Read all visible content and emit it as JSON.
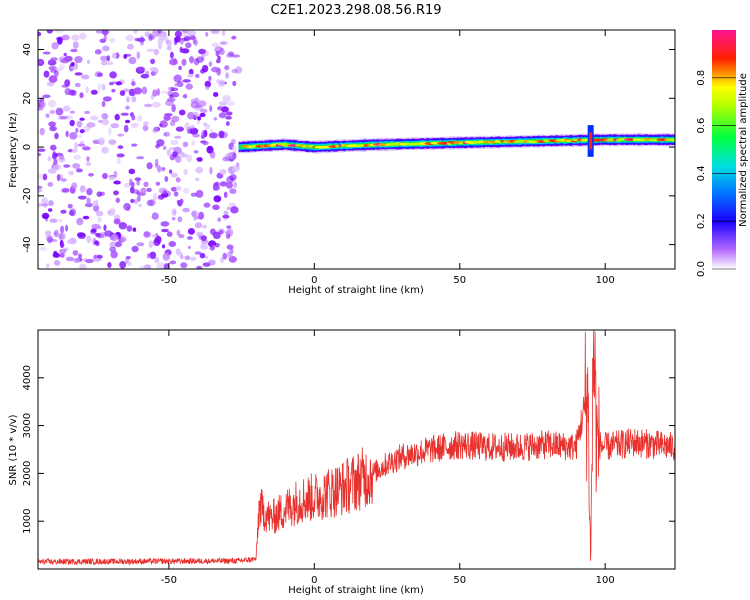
{
  "figure_title": "C2E1.2023.298.08.56.R19",
  "chart_data": [
    {
      "type": "heatmap",
      "title": "C2E1.2023.298.08.56.R19",
      "xlabel": "Height of straight line (km)",
      "ylabel": "Frequency (Hz)",
      "xlim": [
        -95,
        124
      ],
      "ylim": [
        -50,
        48
      ],
      "x_ticks": [
        -50,
        0,
        50,
        100
      ],
      "y_ticks": [
        -40,
        -20,
        0,
        20,
        40
      ],
      "x_tick_labels": [
        "-50",
        "0",
        "50",
        "100"
      ],
      "y_tick_labels": [
        "-40",
        "-20",
        "0",
        "20",
        "40"
      ],
      "colorbar": {
        "label": "Normalized spectral amplitude",
        "range": [
          0,
          1
        ],
        "ticks": [
          0.0,
          0.2,
          0.4,
          0.6,
          0.8
        ],
        "tick_labels": [
          "0.0",
          "0.2",
          "0.4",
          "0.6",
          "0.8"
        ],
        "colormap": "rainbow (white-violet-blue-cyan-green-yellow-red-magenta)"
      },
      "features": {
        "noise_region_x": [
          -95,
          -26
        ],
        "signal_start_x": -26,
        "signal_band_center_hz": [
          [
            -26,
            0
          ],
          [
            -10,
            1
          ],
          [
            0,
            0
          ],
          [
            20,
            1
          ],
          [
            60,
            2
          ],
          [
            100,
            3
          ],
          [
            124,
            3
          ]
        ],
        "signal_band_halfwidth_hz": 2,
        "disturbance_x": 95
      },
      "grid": false
    },
    {
      "type": "line",
      "xlabel": "Height of straight line (km)",
      "ylabel": "SNR (10 * v/v)",
      "xlim": [
        -95,
        124
      ],
      "ylim": [
        0,
        5000
      ],
      "x_ticks": [
        -50,
        0,
        50,
        100
      ],
      "y_ticks": [
        1000,
        2000,
        3000,
        4000
      ],
      "x_tick_labels": [
        "-50",
        "0",
        "50",
        "100"
      ],
      "y_tick_labels": [
        "1000",
        "2000",
        "3000",
        "4000"
      ],
      "color": "#e8302c",
      "series": [
        {
          "x": [
            -95,
            -60,
            -26,
            -20,
            -19,
            -15,
            -10,
            -5,
            0,
            5,
            10,
            15,
            20,
            25,
            30,
            40,
            50,
            60,
            70,
            80,
            90,
            94,
            95,
            96,
            97,
            98,
            100,
            110,
            124
          ],
          "values": [
            150,
            160,
            170,
            210,
            1300,
            1050,
            1250,
            1450,
            1500,
            1600,
            1700,
            1850,
            2000,
            2200,
            2350,
            2500,
            2600,
            2550,
            2550,
            2600,
            2550,
            3700,
            100,
            4900,
            2700,
            2600,
            2550,
            2650,
            2550
          ]
        }
      ],
      "grid": false
    }
  ]
}
